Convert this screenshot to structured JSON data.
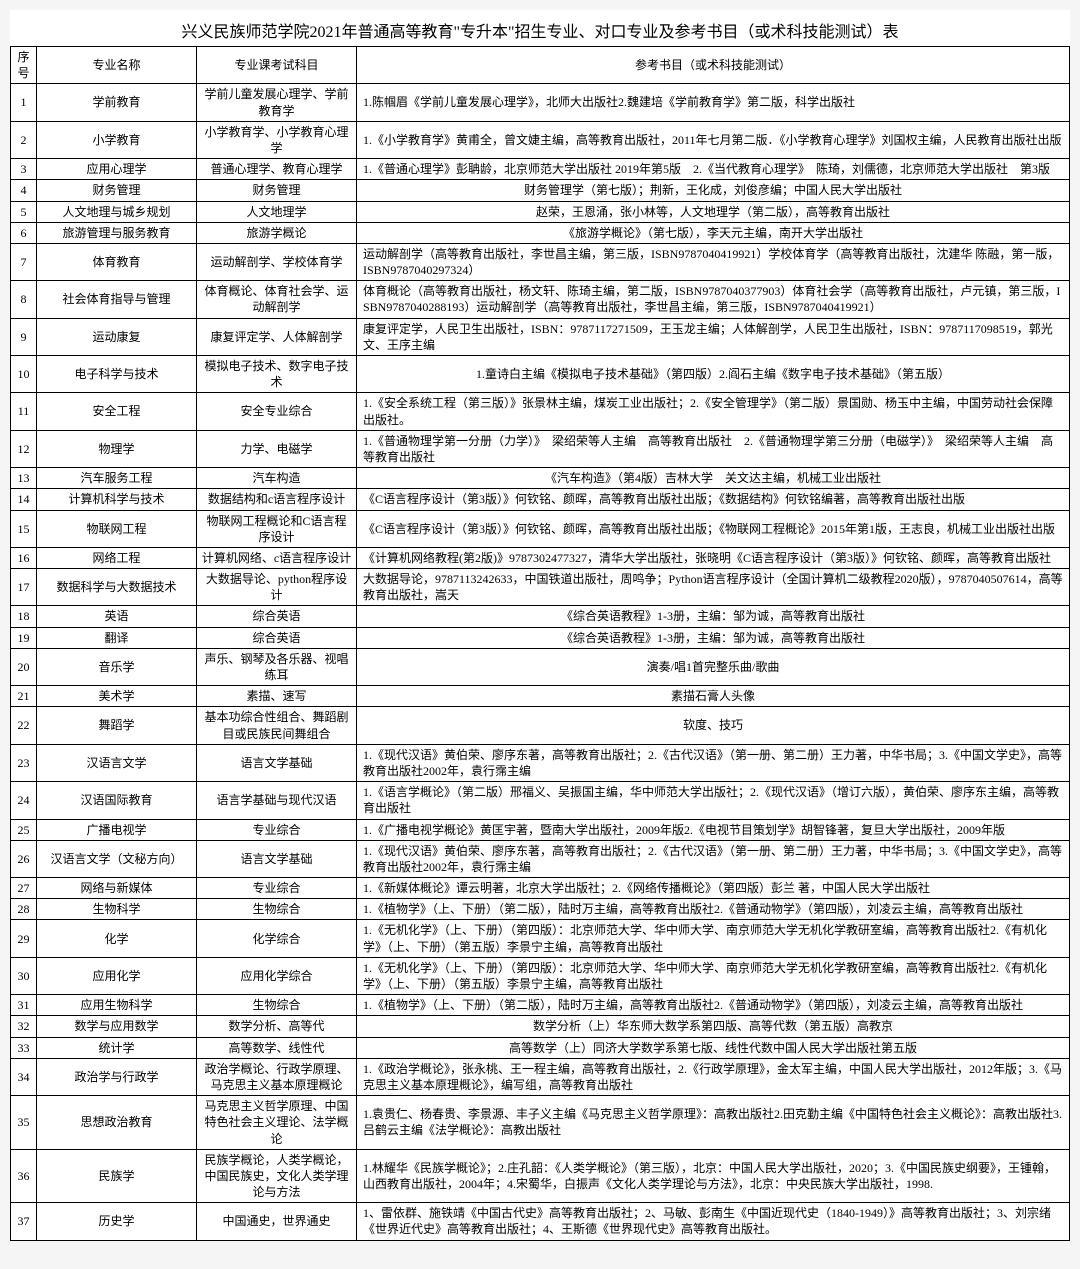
{
  "title": "兴义民族师范学院2021年普通高等教育\"专升本\"招生专业、对口专业及参考书目（或术科技能测试）表",
  "headers": {
    "idx": "序号",
    "major": "专业名称",
    "exam": "专业课考试科目",
    "ref": "参考书目（或术科技能测试）"
  },
  "rows": [
    {
      "idx": "1",
      "major": "学前教育",
      "exam": "学前儿童发展心理学、学前教育学",
      "ref": "1.陈帼眉《学前儿童发展心理学》，北师大出版社2.魏建培《学前教育学》第二版，科学出版社"
    },
    {
      "idx": "2",
      "major": "小学教育",
      "exam": "小学教育学、小学教育心理学",
      "ref": "1.《小学教育学》黄甫全，曾文婕主编，高等教育出版社，2011年七月第二版．《小学教育心理学》刘国权主编，人民教育出版社出版"
    },
    {
      "idx": "3",
      "major": "应用心理学",
      "exam": "普通心理学、教育心理学",
      "ref": "1.《普通心理学》彭聃龄，北京师范大学出版社 2019年第5版　2.《当代教育心理学》　陈琦，刘儒德，北京师范大学出版社　第3版"
    },
    {
      "idx": "4",
      "major": "财务管理",
      "exam": "财务管理",
      "ref": "财务管理学（第七版）；荆新，王化成，刘俊彦编；中国人民大学出版社",
      "center": true
    },
    {
      "idx": "5",
      "major": "人文地理与城乡规划",
      "exam": "人文地理学",
      "ref": "赵荣，王恩涌，张小林等，人文地理学（第二版），高等教育出版社",
      "center": true
    },
    {
      "idx": "6",
      "major": "旅游管理与服务教育",
      "exam": "旅游学概论",
      "ref": "《旅游学概论》（第七版），李天元主编，南开大学出版社",
      "center": true
    },
    {
      "idx": "7",
      "major": "体育教育",
      "exam": "运动解剖学、学校体育学",
      "ref": "运动解剖学（高等教育出版社，李世昌主编，第三版，ISBN9787040419921）学校体育学（高等教育出版社，沈建华 陈融，第一版，ISBN9787040297324）"
    },
    {
      "idx": "8",
      "major": "社会体育指导与管理",
      "exam": "体育概论、体育社会学、运动解剖学",
      "ref": "体育概论（高等教育出版社，杨文轩、陈琦主编，第二版，ISBN9787040377903）体育社会学（高等教育出版社，卢元镇，第三版，ISBN9787040288193）运动解剖学（高等教育出版社，李世昌主编，第三版，ISBN9787040419921）"
    },
    {
      "idx": "9",
      "major": "运动康复",
      "exam": "康复评定学、人体解剖学",
      "ref": "康复评定学，人民卫生出版社，ISBN：9787117271509，王玉龙主编；人体解剖学，人民卫生出版社，ISBN：9787117098519，郭光文、王序主编"
    },
    {
      "idx": "10",
      "major": "电子科学与技术",
      "exam": "模拟电子技术、数字电子技术",
      "ref": "1.童诗白主编《模拟电子技术基础》（第四版）2.阎石主编《数字电子技术基础》（第五版）",
      "center": true
    },
    {
      "idx": "11",
      "major": "安全工程",
      "exam": "安全专业综合",
      "ref": "1.《安全系统工程（第三版）》张景林主编，煤炭工业出版社；2.《安全管理学》（第二版）景国勋、杨玉中主编，中国劳动社会保障出版社。"
    },
    {
      "idx": "12",
      "major": "物理学",
      "exam": "力学、电磁学",
      "ref": "1.《普通物理学第一分册（力学）》　梁绍荣等人主编　高等教育出版社　2.《普通物理学第三分册（电磁学）》　梁绍荣等人主编　高等教育出版社"
    },
    {
      "idx": "13",
      "major": "汽车服务工程",
      "exam": "汽车构造",
      "ref": "《汽车构造》（第4版）吉林大学　关文达主编，机械工业出版社",
      "center": true
    },
    {
      "idx": "14",
      "major": "计算机科学与技术",
      "exam": "数据结构和c语言程序设计",
      "ref": "《C语言程序设计（第3版）》何钦铭、颜晖，高等教育出版社出版；《数据结构》何钦铭编著，高等教育出版社出版"
    },
    {
      "idx": "15",
      "major": "物联网工程",
      "exam": "物联网工程概论和C语言程序设计",
      "ref": "《C语言程序设计（第3版）》何钦铭、颜晖，高等教育出版社出版；《物联网工程概论》2015年第1版，王志良，机械工业出版社出版"
    },
    {
      "idx": "16",
      "major": "网络工程",
      "exam": "计算机网络、c语言程序设计",
      "ref": "《计算机网络教程(第2版)》9787302477327，清华大学出版社，张晓明《C语言程序设计（第3版）》何钦铭、颜晖，高等教育出版社"
    },
    {
      "idx": "17",
      "major": "数据科学与大数据技术",
      "exam": "大数据导论、python程序设计",
      "ref": "大数据导论，9787113242633，中国铁道出版社，周鸣争；Python语言程序设计（全国计算机二级教程2020版），9787040507614，高等教育出版社，嵩天"
    },
    {
      "idx": "18",
      "major": "英语",
      "exam": "综合英语",
      "ref": "《综合英语教程》1-3册，主编：邹为诚，高等教育出版社",
      "center": true
    },
    {
      "idx": "19",
      "major": "翻译",
      "exam": "综合英语",
      "ref": "《综合英语教程》1-3册，主编：邹为诚，高等教育出版社",
      "center": true
    },
    {
      "idx": "20",
      "major": "音乐学",
      "exam": "声乐、钢琴及各乐器、视唱练耳",
      "ref": "演奏/唱1首完整乐曲/歌曲",
      "center": true
    },
    {
      "idx": "21",
      "major": "美术学",
      "exam": "素描、速写",
      "ref": "素描石膏人头像",
      "center": true
    },
    {
      "idx": "22",
      "major": "舞蹈学",
      "exam": "基本功综合性组合、舞蹈剧目或民族民间舞组合",
      "ref": "软度、技巧",
      "center": true
    },
    {
      "idx": "23",
      "major": "汉语言文学",
      "exam": "语言文学基础",
      "ref": "1.《现代汉语》黄伯荣、廖序东著，高等教育出版社；2.《古代汉语》（第一册、第二册）王力著，中华书局；3.《中国文学史》，高等教育出版社2002年，袁行霈主编"
    },
    {
      "idx": "24",
      "major": "汉语国际教育",
      "exam": "语言学基础与现代汉语",
      "ref": "1.《语言学概论》（第二版）邢福义、吴振国主编，华中师范大学出版社；2.《现代汉语》（增订六版），黄伯荣、廖序东主编，高等教育出版社"
    },
    {
      "idx": "25",
      "major": "广播电视学",
      "exam": "专业综合",
      "ref": "1.《广播电视学概论》黄匡宇著，暨南大学出版社，2009年版2.《电视节目策划学》胡智锋著，复旦大学出版社，2009年版"
    },
    {
      "idx": "26",
      "major": "汉语言文学（文秘方向）",
      "exam": "语言文学基础",
      "ref": "1.《现代汉语》黄伯荣、廖序东著，高等教育出版社；2.《古代汉语》（第一册、第二册）王力著，中华书局；3.《中国文学史》，高等教育出版社2002年，袁行霈主编"
    },
    {
      "idx": "27",
      "major": "网络与新媒体",
      "exam": "专业综合",
      "ref": "1.《新媒体概论》谭云明著，北京大学出版社；2.《网络传播概论》（第四版）彭兰 著，中国人民大学出版社"
    },
    {
      "idx": "28",
      "major": "生物科学",
      "exam": "生物综合",
      "ref": "1.《植物学》（上、下册）（第二版），陆时万主编，高等教育出版社2.《普通动物学》（第四版），刘凌云主编，高等教育出版社"
    },
    {
      "idx": "29",
      "major": "化学",
      "exam": "化学综合",
      "ref": "1.《无机化学》（上、下册）（第四版）：北京师范大学、华中师大学、南京师范大学无机化学教研室编，高等教育出版社2.《有机化学》（上、下册）（第五版）李景宁主编，高等教育出版社"
    },
    {
      "idx": "30",
      "major": "应用化学",
      "exam": "应用化学综合",
      "ref": "1.《无机化学》（上、下册）（第四版）：北京师范大学、华中师大学、南京师范大学无机化学教研室编，高等教育出版社2.《有机化学》（上、下册）（第五版）李景宁主编，高等教育出版社"
    },
    {
      "idx": "31",
      "major": "应用生物科学",
      "exam": "生物综合",
      "ref": "1.《植物学》（上、下册）（第二版），陆时万主编，高等教育出版社2.《普通动物学》（第四版），刘凌云主编，高等教育出版社"
    },
    {
      "idx": "32",
      "major": "数学与应用数学",
      "exam": "数学分析、高等代",
      "ref": "数学分析（上）华东师大数学系第四版、高等代数（第五版）高教京",
      "center": true
    },
    {
      "idx": "33",
      "major": "统计学",
      "exam": "高等数学、线性代",
      "ref": "高等数学（上）同济大学数学系第七版、线性代数中国人民大学出版社第五版",
      "center": true
    },
    {
      "idx": "34",
      "major": "政治学与行政学",
      "exam": "政治学概论、行政学原理、马克思主义基本原理概论",
      "ref": "1.《政治学概论》，张永桃、王一程主编，高等教育出版社，2.《行政学原理》，金太军主编，中国人民大学出版社，2012年版；3.《马克思主义基本原理概论》，编写组，高等教育出版社"
    },
    {
      "idx": "35",
      "major": "思想政治教育",
      "exam": "马克思主义哲学原理、中国特色社会主义理论、法学概论",
      "ref": "1.袁贵仁、杨春贵、李景源、丰子义主编《马克思主义哲学原理》：高教出版社2.田克勤主编《中国特色社会主义概论》：高教出版社3.吕鹤云主编《法学概论》：高教出版社"
    },
    {
      "idx": "36",
      "major": "民族学",
      "exam": "民族学概论，人类学概论，中国民族史，文化人类学理论与方法",
      "ref": "1.林耀华《民族学概论》；2.庄孔韶：《人类学概论》（第三版），北京：中国人民大学出版社，2020；3.《中国民族史纲要》，王锺翰，山西教育出版社，2004年；4.宋蜀华，白振声《文化人类学理论与方法》，北京：中央民族大学出版社，1998."
    },
    {
      "idx": "37",
      "major": "历史学",
      "exam": "中国通史，世界通史",
      "ref": "1、雷依群、施铁靖《中国古代史》高等教育出版社；2、马敏、彭南生《中国近现代史（1840-1949）》高等教育出版社；3、刘宗绪《世界近代史》高等教育出版社；4、王斯德《世界现代史》高等教育出版社。"
    }
  ]
}
